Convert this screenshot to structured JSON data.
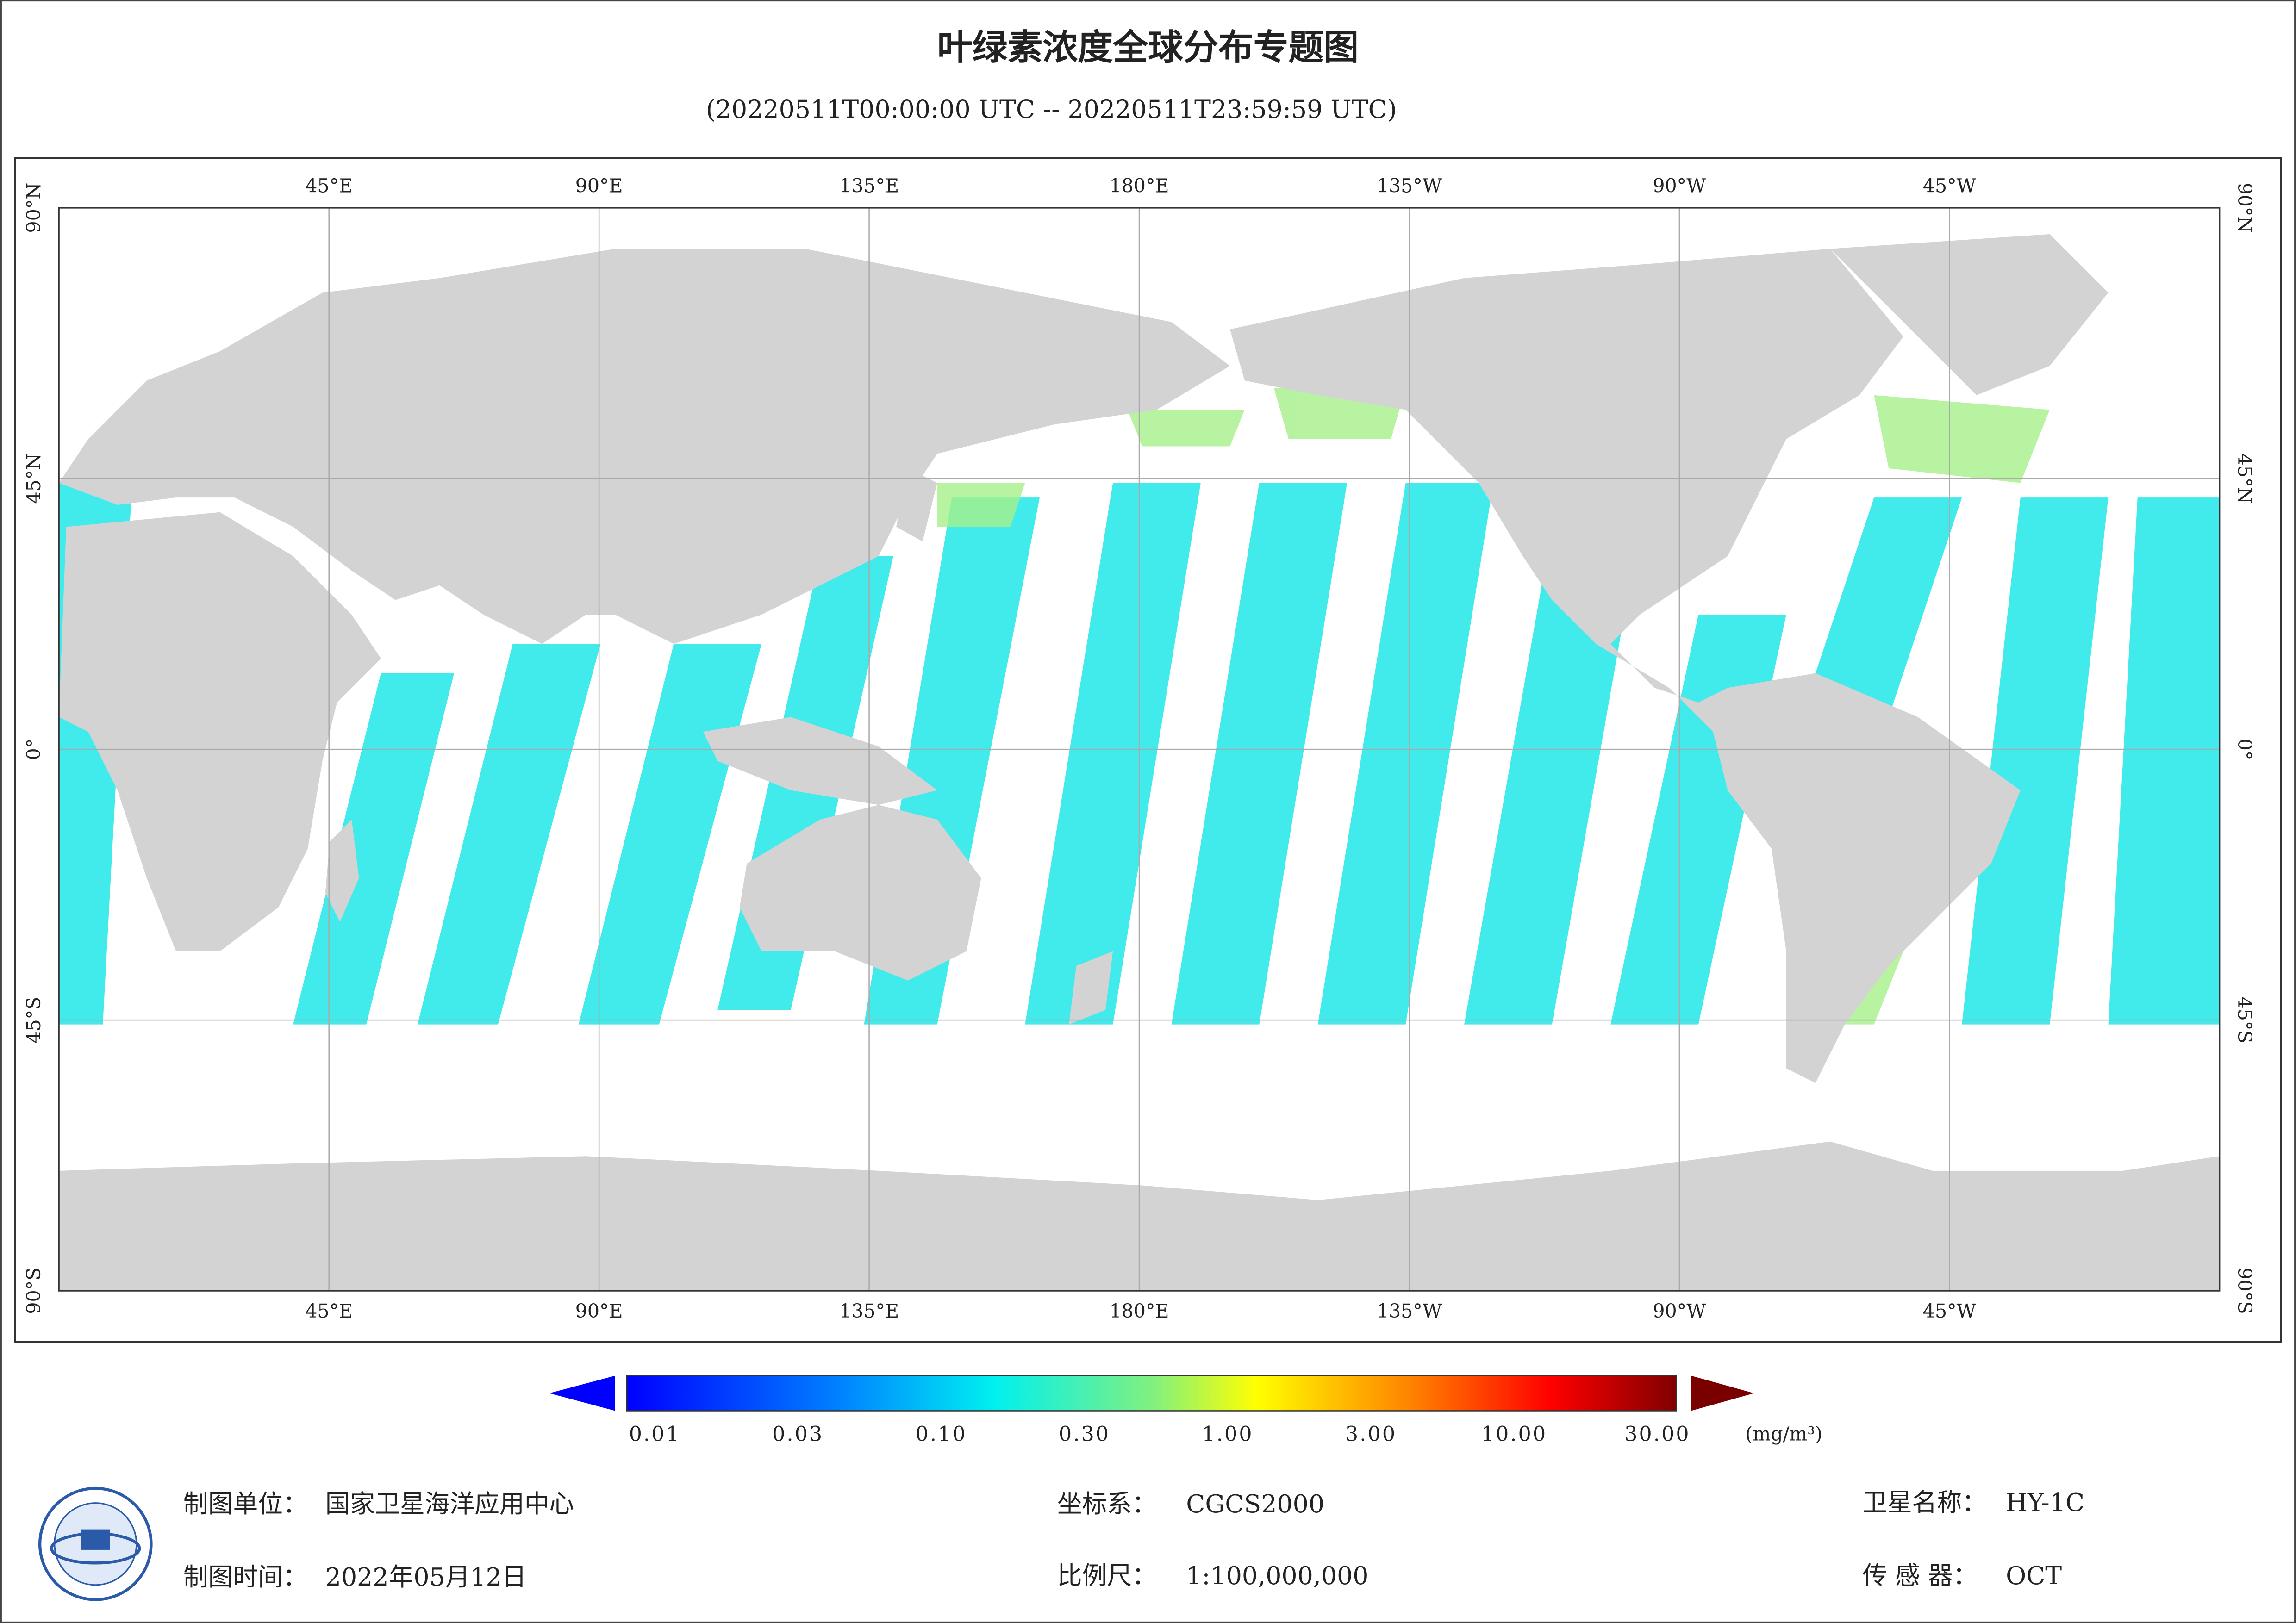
{
  "header": {
    "title": "叶绿素浓度全球分布专题图",
    "subtitle": "(20220511T00:00:00 UTC -- 20220511T23:59:59 UTC)"
  },
  "map": {
    "lon_labels": [
      "45°E",
      "90°E",
      "135°E",
      "180°E",
      "135°W",
      "90°W",
      "45°W"
    ],
    "lat_labels": [
      "90°N",
      "45°N",
      "0°",
      "45°S",
      "90°S"
    ]
  },
  "colorbar": {
    "labels": [
      "0.01",
      "0.03",
      "0.10",
      "0.30",
      "1.00",
      "3.00",
      "10.00",
      "30.00"
    ],
    "unit": "(mg/m³)"
  },
  "footer": {
    "org_label": "制图单位：",
    "org": "国家卫星海洋应用中心",
    "date_label": "制图时间：",
    "date": "2022年05月12日",
    "crs_label": "坐标系：",
    "crs": "CGCS2000",
    "scale_label": "比例尺：",
    "scale": "1:100,000,000",
    "satellite_label": "卫星名称：",
    "satellite": "HY-1C",
    "sensor_label": "传 感 器：",
    "sensor": "OCT"
  }
}
